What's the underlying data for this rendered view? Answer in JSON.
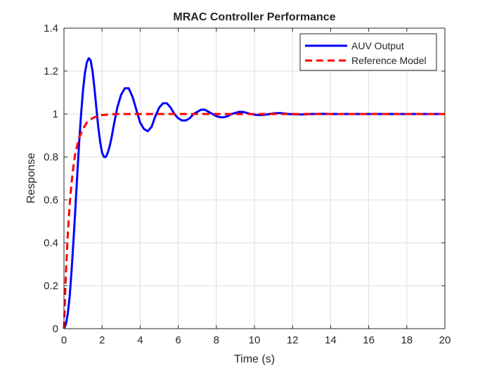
{
  "chart_data": {
    "type": "line",
    "title": "MRAC Controller Performance",
    "xlabel": "Time (s)",
    "ylabel": "Response",
    "xlim": [
      0,
      20
    ],
    "ylim": [
      0,
      1.4
    ],
    "xticks": [
      0,
      2,
      4,
      6,
      8,
      10,
      12,
      14,
      16,
      18,
      20
    ],
    "yticks": [
      0,
      0.2,
      0.4,
      0.6,
      0.8,
      1,
      1.2,
      1.4
    ],
    "xtick_labels": [
      "0",
      "2",
      "4",
      "6",
      "8",
      "10",
      "12",
      "14",
      "16",
      "18",
      "20"
    ],
    "ytick_labels": [
      "0",
      "0.2",
      "0.4",
      "0.6",
      "0.8",
      "1",
      "1.2",
      "1.4"
    ],
    "grid": true,
    "legend_position": "top-right",
    "series": [
      {
        "name": "AUV Output",
        "color": "#0000ff",
        "style": "solid",
        "x": [
          0,
          0.1,
          0.2,
          0.3,
          0.4,
          0.5,
          0.6,
          0.7,
          0.8,
          0.9,
          1.0,
          1.1,
          1.2,
          1.3,
          1.4,
          1.5,
          1.6,
          1.7,
          1.8,
          1.9,
          2.0,
          2.1,
          2.2,
          2.3,
          2.4,
          2.5,
          2.6,
          2.8,
          3.0,
          3.2,
          3.4,
          3.6,
          3.8,
          4.0,
          4.2,
          4.4,
          4.6,
          4.8,
          5.0,
          5.2,
          5.4,
          5.6,
          5.8,
          6.0,
          6.2,
          6.4,
          6.6,
          6.8,
          7.0,
          7.2,
          7.4,
          7.6,
          7.8,
          8.0,
          8.2,
          8.4,
          8.6,
          8.8,
          9.0,
          9.2,
          9.4,
          9.6,
          9.8,
          10.0,
          10.2,
          10.4,
          10.6,
          10.8,
          11.0,
          11.2,
          11.4,
          11.6,
          11.8,
          12.0,
          12.5,
          13.0,
          13.5,
          14.0,
          15.0,
          16.0,
          17.0,
          18.0,
          19.0,
          20.0
        ],
        "y": [
          0,
          0.02,
          0.07,
          0.15,
          0.27,
          0.41,
          0.56,
          0.72,
          0.87,
          1.0,
          1.11,
          1.19,
          1.24,
          1.26,
          1.25,
          1.2,
          1.12,
          1.03,
          0.94,
          0.87,
          0.82,
          0.8,
          0.8,
          0.82,
          0.85,
          0.89,
          0.94,
          1.03,
          1.09,
          1.12,
          1.12,
          1.08,
          1.02,
          0.96,
          0.93,
          0.92,
          0.94,
          0.99,
          1.03,
          1.05,
          1.05,
          1.03,
          1.0,
          0.98,
          0.97,
          0.97,
          0.98,
          1.0,
          1.01,
          1.02,
          1.02,
          1.01,
          1.0,
          0.99,
          0.985,
          0.985,
          0.99,
          1.0,
          1.005,
          1.01,
          1.01,
          1.005,
          1.0,
          0.997,
          0.995,
          0.995,
          0.997,
          1.0,
          1.003,
          1.004,
          1.004,
          1.002,
          1.0,
          0.999,
          0.998,
          1.0,
          1.001,
          1.0,
          1.0,
          1.0,
          1.0,
          1.0,
          1.0,
          1.0
        ]
      },
      {
        "name": "Reference Model",
        "color": "#ff0000",
        "style": "dashed",
        "x": [
          0,
          0.05,
          0.1,
          0.2,
          0.3,
          0.4,
          0.5,
          0.6,
          0.8,
          1.0,
          1.2,
          1.4,
          1.6,
          1.8,
          2.0,
          2.5,
          3.0,
          4.0,
          5.0,
          6.0,
          8.0,
          10.0,
          12.0,
          14.0,
          16.0,
          18.0,
          20.0
        ],
        "y": [
          0,
          0.13,
          0.25,
          0.44,
          0.58,
          0.68,
          0.76,
          0.82,
          0.89,
          0.93,
          0.96,
          0.975,
          0.985,
          0.99,
          0.995,
          0.999,
          1.0,
          1.0,
          1.0,
          1.0,
          1.0,
          1.0,
          1.0,
          1.0,
          1.0,
          1.0,
          1.0
        ]
      }
    ]
  }
}
